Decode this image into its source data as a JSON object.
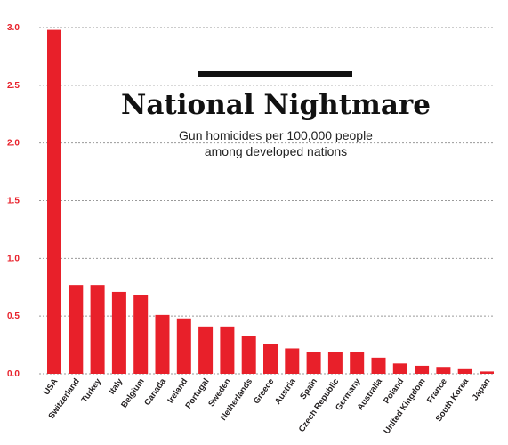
{
  "chart_data": {
    "type": "bar",
    "title": "National Nightmare",
    "subtitle_lines": [
      "Gun homicides per 100,000 people",
      "among developed nations"
    ],
    "xlabel": "",
    "ylabel": "",
    "ylim": [
      0,
      3.0
    ],
    "y_ticks": [
      "0.0",
      "0.5",
      "1.0",
      "1.5",
      "2.0",
      "2.5",
      "3.0"
    ],
    "grid": true,
    "categories": [
      "USA",
      "Switzerland",
      "Turkey",
      "Italy",
      "Belgium",
      "Canada",
      "Ireland",
      "Portugal",
      "Sweden",
      "Netherlands",
      "Greece",
      "Austria",
      "Spain",
      "Czech Republic",
      "Germany",
      "Australia",
      "Poland",
      "United Kingdom",
      "France",
      "South Korea",
      "Japan"
    ],
    "values": [
      2.98,
      0.77,
      0.77,
      0.71,
      0.68,
      0.51,
      0.48,
      0.41,
      0.41,
      0.33,
      0.26,
      0.22,
      0.19,
      0.19,
      0.19,
      0.14,
      0.09,
      0.07,
      0.06,
      0.04,
      0.02
    ],
    "colors": {
      "bar": "#e8202a",
      "tick": "#e8202a",
      "grid": "#9a9a9a",
      "title_bar": "#111111"
    }
  }
}
